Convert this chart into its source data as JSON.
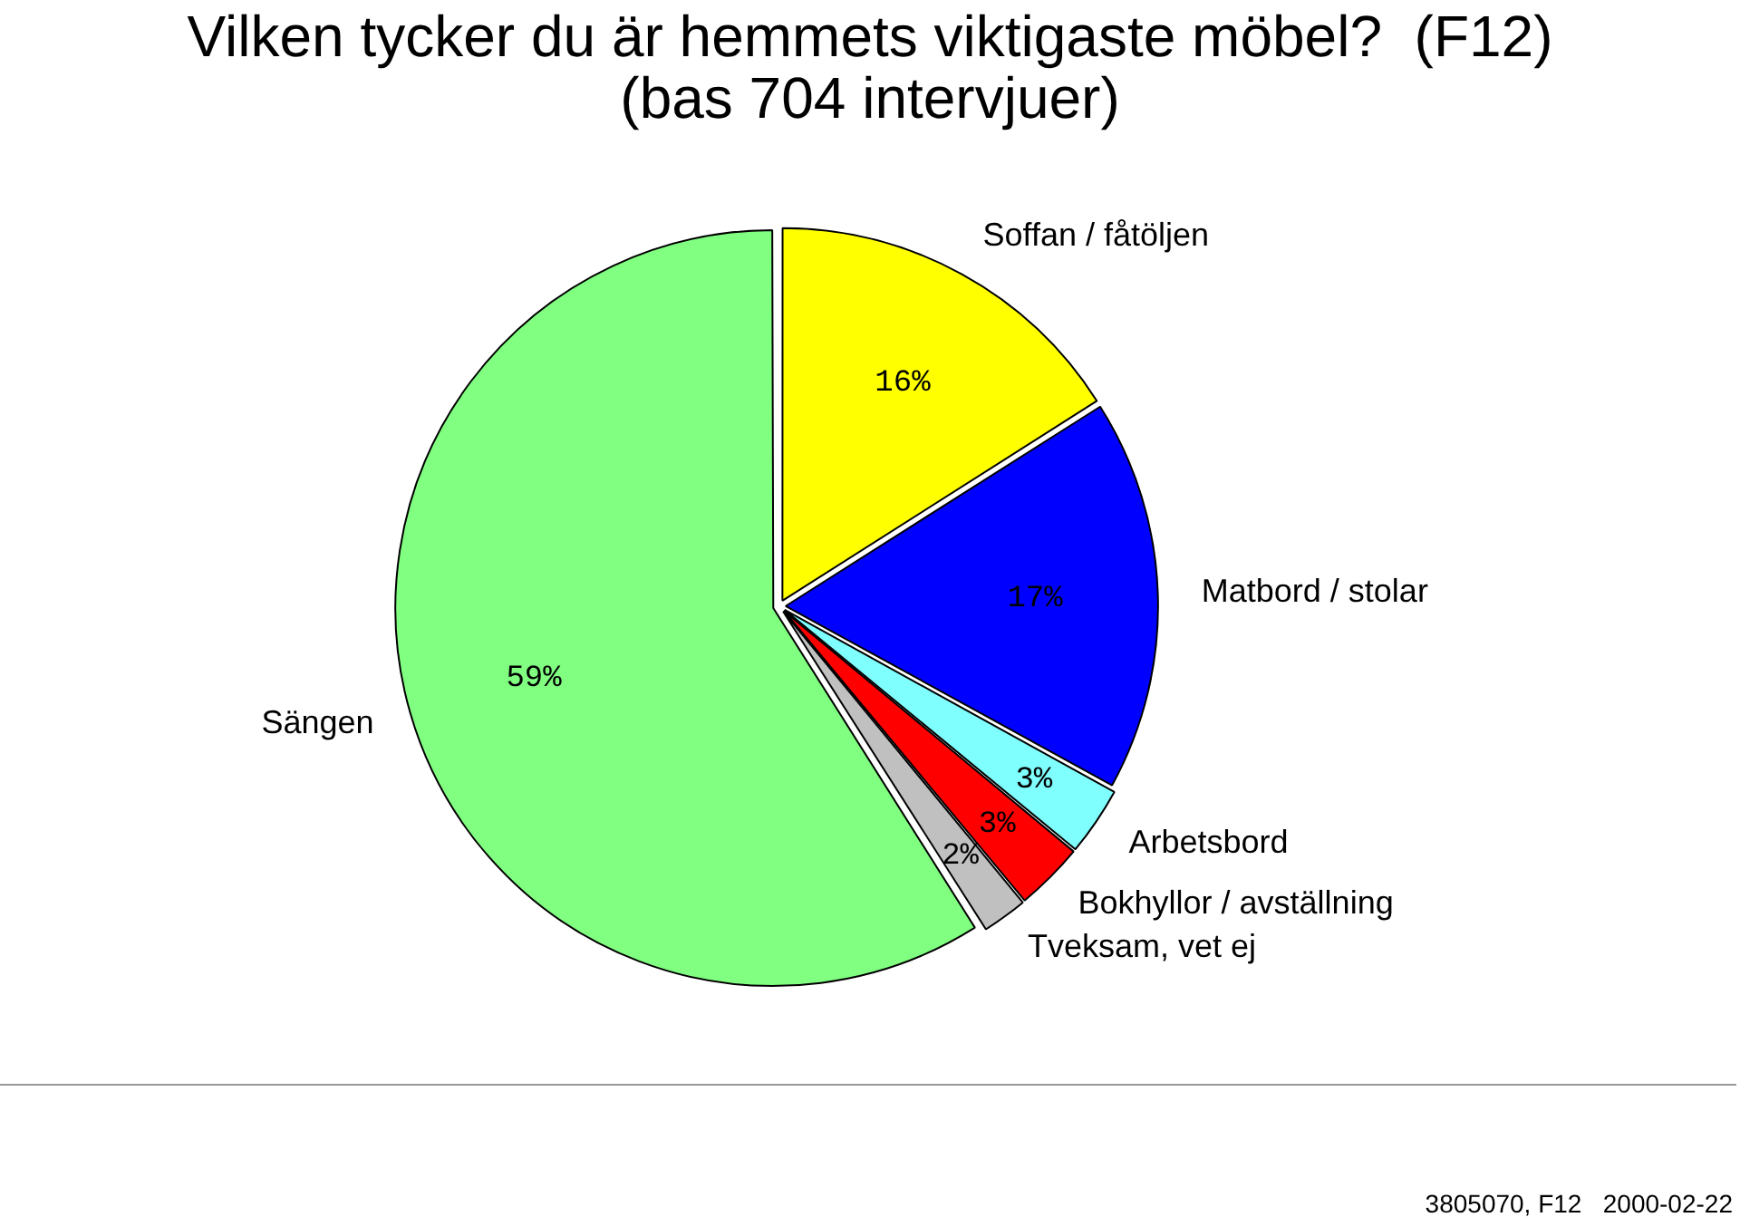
{
  "chart_data": {
    "type": "pie",
    "title": "Vilken tycker du är hemmets viktigaste möbel?  (F12)",
    "subtitle": "(bas 704 intervjuer)",
    "categories": [
      "Soffan / fåtöljen",
      "Matbord / stolar",
      "Arbetsbord",
      "Bokhyllor / avställning",
      "Tveksam, vet ej",
      "Sängen"
    ],
    "values": [
      16,
      17,
      3,
      3,
      2,
      59
    ],
    "colors": [
      "#ffff00",
      "#0000ff",
      "#80ffff",
      "#ff0000",
      "#c0c0c0",
      "#80ff80"
    ],
    "value_labels": [
      "16%",
      "17%",
      "3%",
      "3%",
      "2%",
      "59%"
    ],
    "annotations": [
      "3805070, F12   2000-02-22"
    ]
  }
}
